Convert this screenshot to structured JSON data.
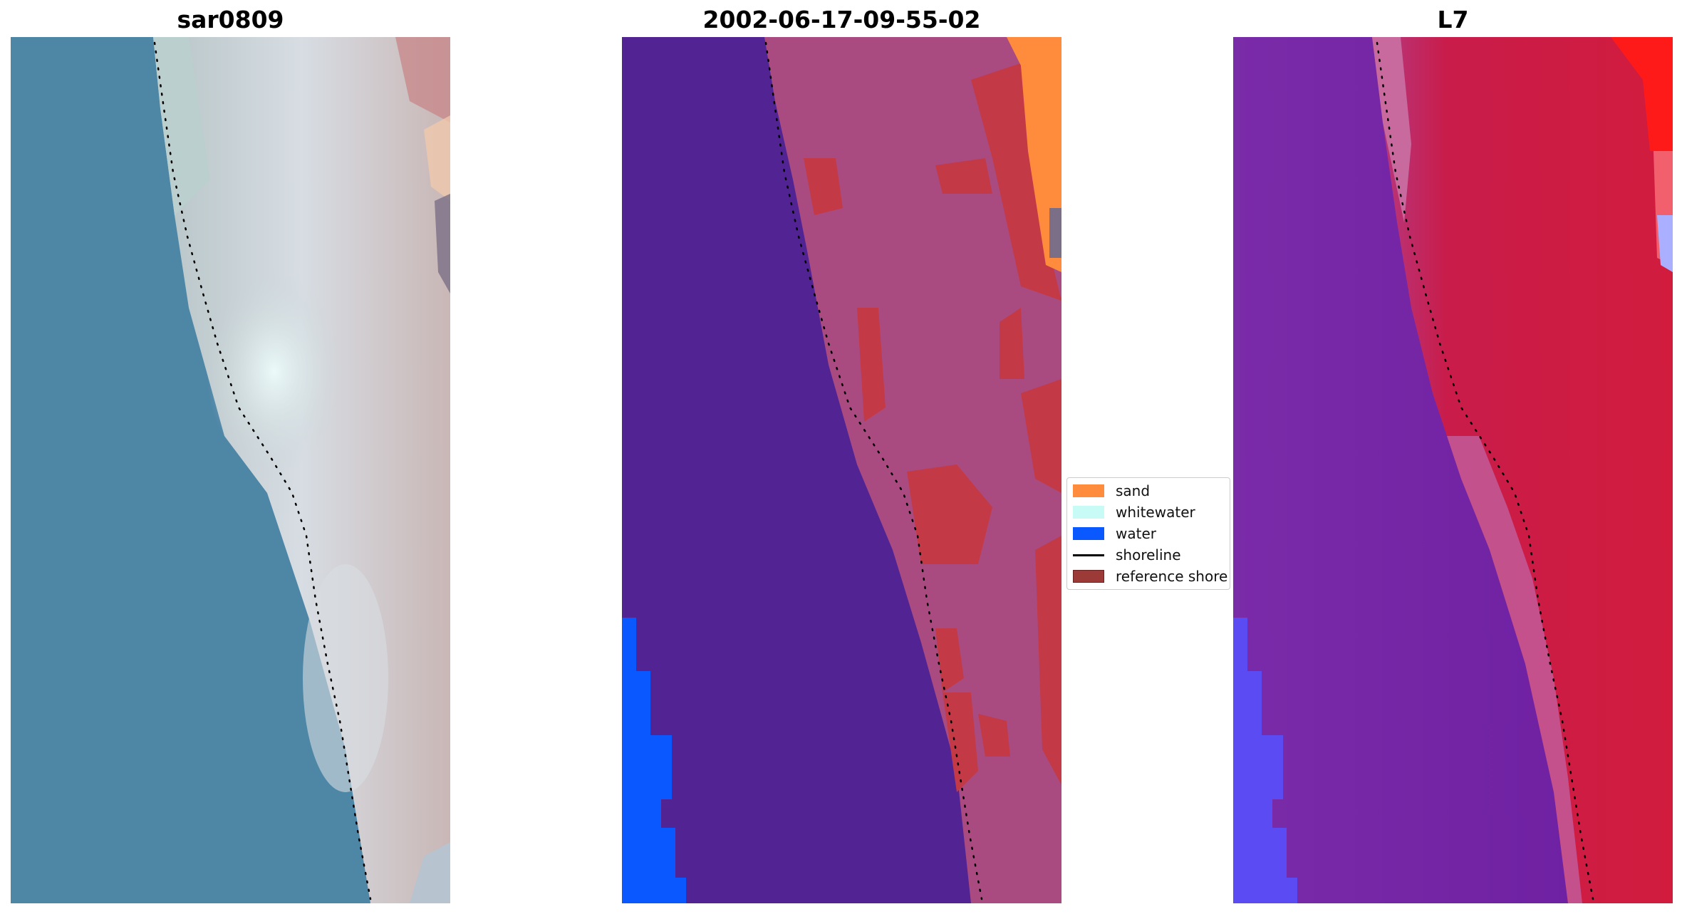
{
  "panels": [
    {
      "title": "sar0809"
    },
    {
      "title": "2002-06-17-09-55-02"
    },
    {
      "title": "L7"
    }
  ],
  "legend": {
    "items": [
      {
        "label": "sand",
        "color": "#ff8c3c",
        "kind": "patch"
      },
      {
        "label": "whitewater",
        "color": "#c8fbf6",
        "kind": "patch"
      },
      {
        "label": "water",
        "color": "#0a58ff",
        "kind": "patch"
      },
      {
        "label": "shoreline",
        "color": "#000000",
        "kind": "line"
      },
      {
        "label": "reference shore",
        "color": "#9b3a36",
        "kind": "patch"
      }
    ]
  },
  "colors": {
    "sea_rgb": "#4f86a6",
    "beach_rgb": "#c9d3dc",
    "classified_water_dark": "#522393",
    "classified_land": "#a94b80",
    "classified_red": "#c33a46",
    "mndwi_water": "#7427a4",
    "mndwi_land": "#c7163f",
    "mndwi_bright_red": "#ff1a1a"
  }
}
